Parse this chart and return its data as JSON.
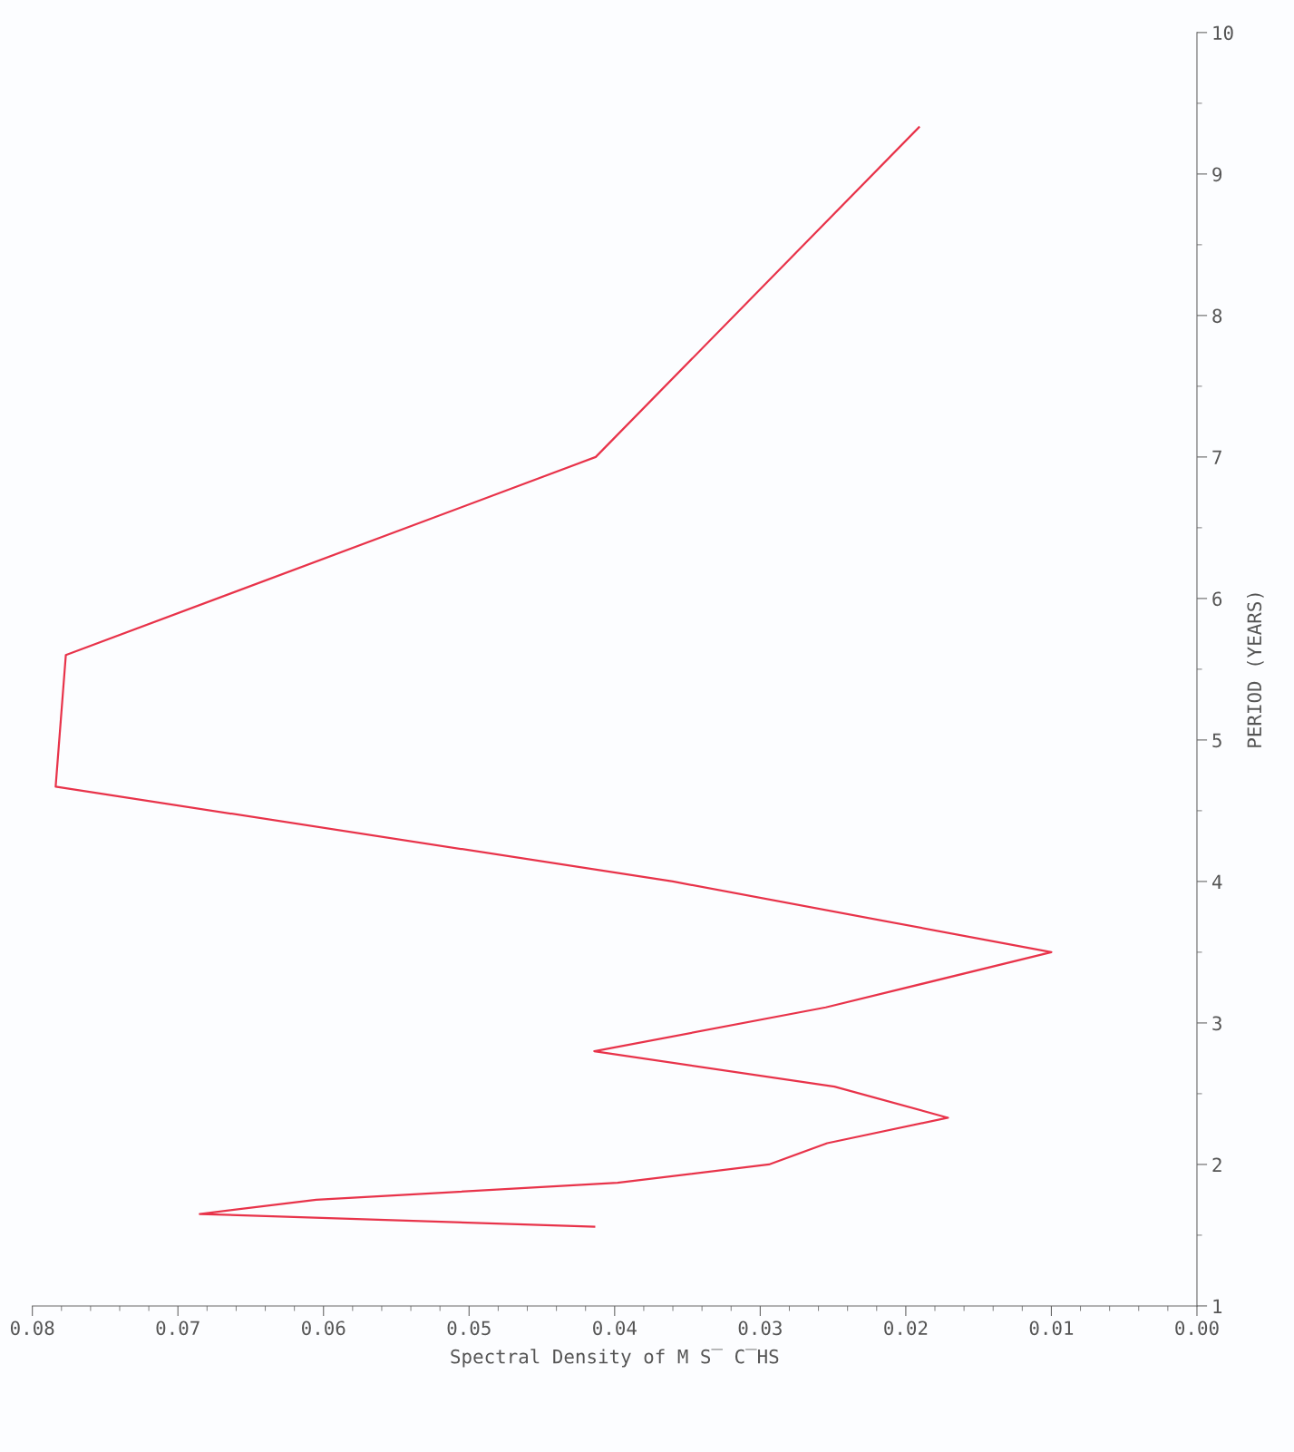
{
  "chart_data": {
    "type": "line",
    "xlabel": "Spectral Density of M S̅ C̅HS",
    "ylabel": "PERIOD (YEARS)",
    "x": [
      0.0191,
      0.0413,
      0.0777,
      0.0784,
      0.036,
      0.01,
      0.0255,
      0.0414,
      0.0249,
      0.0171,
      0.0254,
      0.0294,
      0.0398,
      0.0605,
      0.0685,
      0.0414
    ],
    "series": [
      {
        "color": "#e8334a",
        "values": [
          9.33,
          7.0,
          5.6,
          4.67,
          4.0,
          3.5,
          3.11,
          2.8,
          2.55,
          2.33,
          2.15,
          2.0,
          1.87,
          1.75,
          1.65,
          1.56
        ]
      }
    ],
    "ylim": [
      1,
      10
    ],
    "yticks": [
      1,
      2,
      3,
      4,
      5,
      6,
      7,
      8,
      9,
      10
    ],
    "xlim": [
      0.08,
      0
    ],
    "xticks": [
      {
        "value": 0,
        "label": "0.00"
      },
      {
        "value": 0.01,
        "label": "0.01"
      },
      {
        "value": 0.02,
        "label": "0.02"
      },
      {
        "value": 0.03,
        "label": "0.03"
      },
      {
        "value": 0.04,
        "label": "0.04"
      },
      {
        "value": 0.05,
        "label": "0.05"
      },
      {
        "value": 0.06,
        "label": "0.06"
      },
      {
        "value": 0.07,
        "label": "0.07"
      },
      {
        "value": 0.08,
        "label": "0.08"
      }
    ],
    "grid": false
  }
}
